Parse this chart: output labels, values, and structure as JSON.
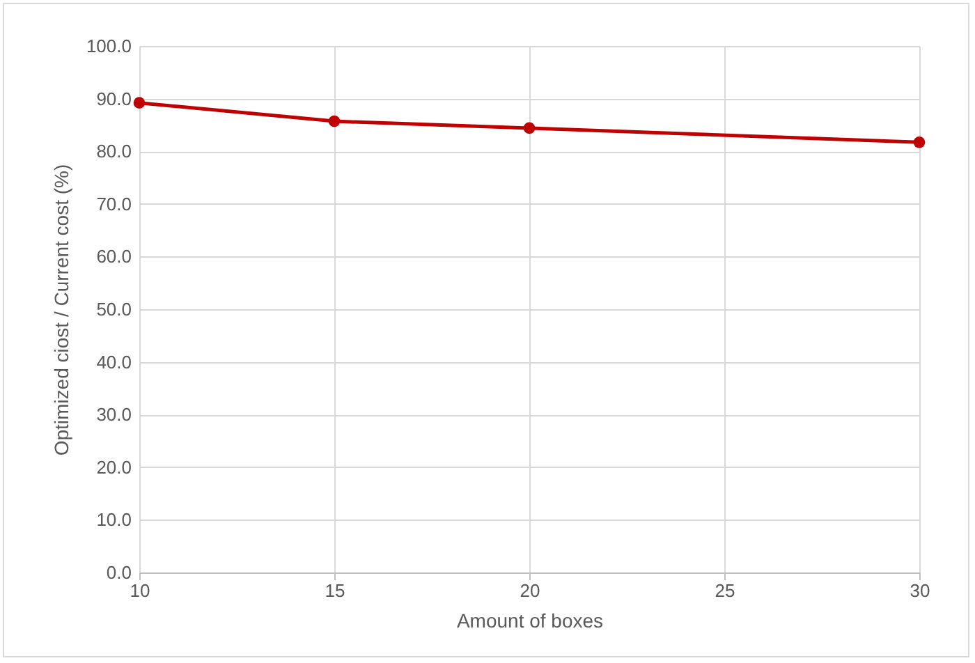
{
  "chart_data": {
    "type": "line",
    "xlabel": "Amount of boxes",
    "ylabel": "Optimized ciost  / Current cost (%)",
    "x": [
      10,
      15,
      20,
      30
    ],
    "series": [
      {
        "color": "#c00000",
        "values": [
          89.2,
          85.7,
          84.4,
          81.7
        ]
      }
    ],
    "xlim": [
      10,
      30
    ],
    "xticks": [
      10,
      15,
      20,
      25,
      30
    ],
    "ylim": [
      0,
      100
    ],
    "yticks": [
      {
        "value": 0,
        "label": "0.0"
      },
      {
        "value": 10,
        "label": "10.0"
      },
      {
        "value": 20,
        "label": "20.0"
      },
      {
        "value": 30,
        "label": "30.0"
      },
      {
        "value": 40,
        "label": "40.0"
      },
      {
        "value": 50,
        "label": "50.0"
      },
      {
        "value": 60,
        "label": "60.0"
      },
      {
        "value": 70,
        "label": "70.0"
      },
      {
        "value": 80,
        "label": "80.0"
      },
      {
        "value": 90,
        "label": "90.0"
      },
      {
        "value": 100,
        "label": "100.0"
      }
    ],
    "grid": true,
    "marker": "circle",
    "line_style": "solid",
    "legend": false
  }
}
